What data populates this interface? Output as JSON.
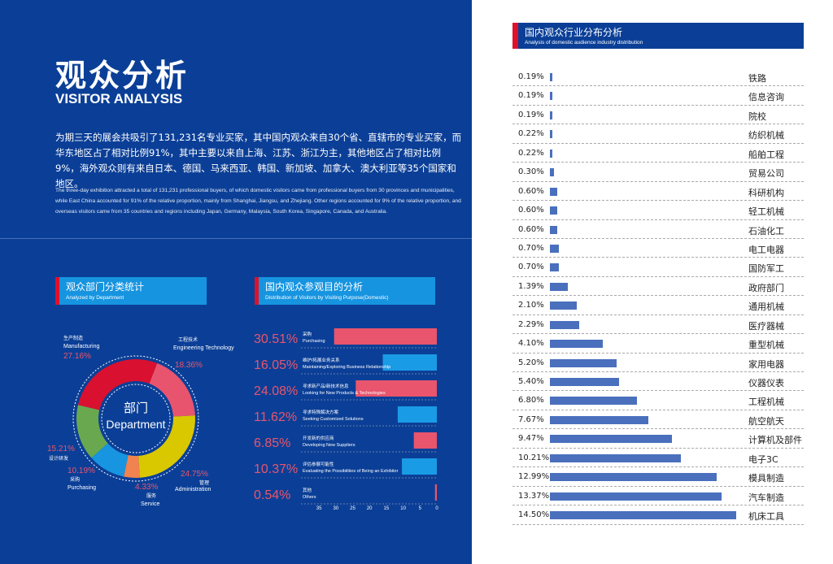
{
  "header": {
    "title_cn": "观众分析",
    "title_en": "VISITOR ANALYSIS"
  },
  "intro": {
    "cn": "为期三天的展会共吸引了131,231名专业买家，其中国内观众来自30个省、直辖市的专业买家，而华东地区占了相对比例91%，其中主要以来自上海、江苏、浙江为主，其他地区占了相对比例9%，海外观众则有来自日本、德国、马来西亚、韩国、新加坡、加拿大、澳大利亚等35个国家和地区。",
    "en": "The three-day exhibition attracted a total of 131,231 professional buyers, of which domestic visitors came from professional buyers from 30 provinces and municipalities, while East China accounted for 91% of the relative proportion, mainly from Shanghai, Jiangsu, and Zhejiang. Other regions accounted for 9% of the relative proportion, and overseas visitors came from 35 countries and regions including Japan, Germany, Malaysia, South Korea, Singapore, Canada, and Australia."
  },
  "colors": {
    "bg": "#0b3f97",
    "pink": "#e8556d",
    "blue": "#1a9be6",
    "bar": "#4a6fbd"
  },
  "chart_data": [
    {
      "type": "pie",
      "title": "观众部门分类统计",
      "subtitle": "Analyzed by Department",
      "center_cn": "部门",
      "center_en": "Department",
      "slices": [
        {
          "cn": "工程技术",
          "en": "Engineering Technology",
          "value": 18.36,
          "label": "18.36%",
          "color": "#e8546e"
        },
        {
          "cn": "管理",
          "en": "Administration",
          "value": 24.75,
          "label": "24.75%",
          "color": "#d9c800"
        },
        {
          "cn": "服务",
          "en": "Service",
          "value": 4.33,
          "label": "4.33%",
          "color": "#f0834f"
        },
        {
          "cn": "采购",
          "en": "Purchasing",
          "value": 10.19,
          "label": "10.19%",
          "color": "#1795e0"
        },
        {
          "cn": "设计研发",
          "en": "",
          "value": 15.21,
          "label": "15.21%",
          "color": "#6aa84f"
        },
        {
          "cn": "生产制造",
          "en": "Manufacturing",
          "value": 27.16,
          "label": "27.16%",
          "color": "#d9102f"
        }
      ]
    },
    {
      "type": "bar",
      "title": "国内观众参观目的分析",
      "subtitle": "Distribution of Visitors by Visiting Purpose(Domestic)",
      "xlim": [
        35,
        0
      ],
      "ticks": [
        "35",
        "30",
        "25",
        "20",
        "15",
        "10",
        "5",
        "0"
      ],
      "categories": [
        {
          "cn": "采购",
          "en": "Purchasing",
          "value": 30.51,
          "label": "30.51%"
        },
        {
          "cn": "维护/拓展业务关系",
          "en": "Maintaining/Exploring Business Relationship",
          "value": 16.05,
          "label": "16.05%"
        },
        {
          "cn": "寻求新产品/新技术信息",
          "en": "Looking for New Products & Technologies",
          "value": 24.08,
          "label": "24.08%"
        },
        {
          "cn": "寻求特殊解决方案",
          "en": "Seeking Customized Solutions",
          "value": 11.62,
          "label": "11.62%"
        },
        {
          "cn": "开发新的供应商",
          "en": "Developing New Suppliers",
          "value": 6.85,
          "label": "6.85%"
        },
        {
          "cn": "评估参展可能性",
          "en": "Evaluating the Possibilities of Being an Exhibitor",
          "value": 10.37,
          "label": "10.37%"
        },
        {
          "cn": "其他",
          "en": "Others",
          "value": 0.54,
          "label": "0.54%"
        }
      ]
    },
    {
      "type": "bar",
      "title": "国内观众行业分布分析",
      "subtitle": "Analysis of domestic audience industry distribution",
      "xlim": [
        0,
        15
      ],
      "rows": [
        {
          "name": "铁路",
          "value": 0.19,
          "label": "0.19%"
        },
        {
          "name": "信息咨询",
          "value": 0.19,
          "label": "0.19%"
        },
        {
          "name": "院校",
          "value": 0.19,
          "label": "0.19%"
        },
        {
          "name": "纺织机械",
          "value": 0.22,
          "label": "0.22%"
        },
        {
          "name": "船舶工程",
          "value": 0.22,
          "label": "0.22%"
        },
        {
          "name": "贸易公司",
          "value": 0.3,
          "label": "0.30%"
        },
        {
          "name": "科研机构",
          "value": 0.6,
          "label": "0.60%"
        },
        {
          "name": "轻工机械",
          "value": 0.6,
          "label": "0.60%"
        },
        {
          "name": "石油化工",
          "value": 0.6,
          "label": "0.60%"
        },
        {
          "name": "电工电器",
          "value": 0.7,
          "label": "0.70%"
        },
        {
          "name": "国防军工",
          "value": 0.7,
          "label": "0.70%"
        },
        {
          "name": "政府部门",
          "value": 1.39,
          "label": "1.39%"
        },
        {
          "name": "通用机械",
          "value": 2.1,
          "label": "2.10%"
        },
        {
          "name": "医疗器械",
          "value": 2.29,
          "label": "2.29%"
        },
        {
          "name": "重型机械",
          "value": 4.1,
          "label": "4.10%"
        },
        {
          "name": "家用电器",
          "value": 5.2,
          "label": "5.20%"
        },
        {
          "name": "仪器仪表",
          "value": 5.4,
          "label": "5.40%"
        },
        {
          "name": "工程机械",
          "value": 6.8,
          "label": "6.80%"
        },
        {
          "name": "航空航天",
          "value": 7.67,
          "label": "7.67%"
        },
        {
          "name": "计算机及部件",
          "value": 9.47,
          "label": "9.47%"
        },
        {
          "name": "电子3C",
          "value": 10.21,
          "label": "10.21%"
        },
        {
          "name": "模具制造",
          "value": 12.99,
          "label": "12.99%"
        },
        {
          "name": "汽车制造",
          "value": 13.37,
          "label": "13.37%"
        },
        {
          "name": "机床工具",
          "value": 14.5,
          "label": "14.50%"
        }
      ]
    }
  ]
}
